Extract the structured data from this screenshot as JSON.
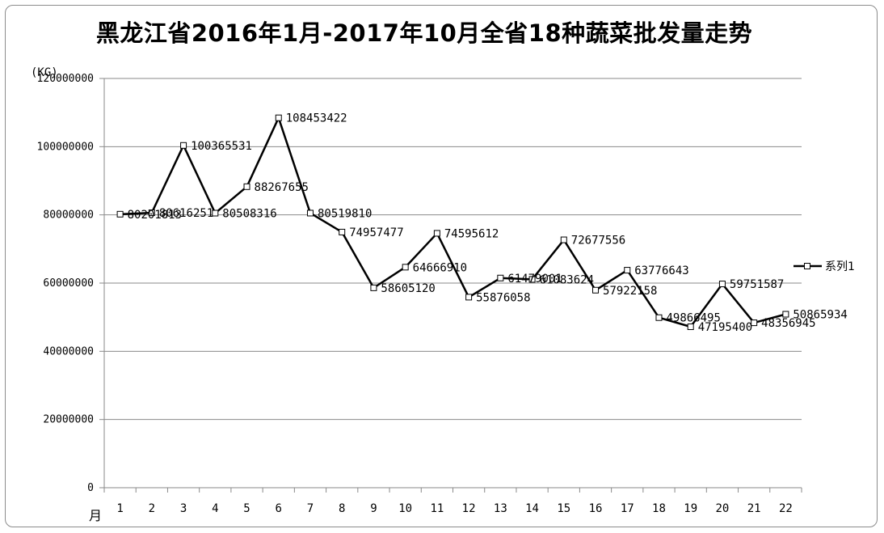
{
  "chart_data": {
    "type": "line",
    "title": "黑龙江省2016年1月-2017年10月全省18种蔬菜批发量走势",
    "ylabel": "(KG)",
    "xlabel": "月",
    "ylim": [
      0,
      120000000
    ],
    "yticks": [
      0,
      20000000,
      40000000,
      60000000,
      80000000,
      100000000,
      120000000
    ],
    "ytick_labels": [
      "0",
      "20000000",
      "40000000",
      "60000000",
      "80000000",
      "100000000",
      "120000000"
    ],
    "categories": [
      "1",
      "2",
      "3",
      "4",
      "5",
      "6",
      "7",
      "8",
      "9",
      "10",
      "11",
      "12",
      "13",
      "14",
      "15",
      "16",
      "17",
      "18",
      "19",
      "20",
      "21",
      "22"
    ],
    "grid": true,
    "legend_position": "right",
    "series": [
      {
        "name": "系列1",
        "color": "#000000",
        "values": [
          80201813,
          80616251,
          100365531,
          80508316,
          88267655,
          108453422,
          80519810,
          74957477,
          58605120,
          64666910,
          74595612,
          55876058,
          61479001,
          61083624,
          72677556,
          57922158,
          63776643,
          49866495,
          47195400,
          59751587,
          48356945,
          50865934
        ],
        "labels": [
          "80201813",
          "80616251",
          "100365531",
          "80508316",
          "88267655",
          "108453422",
          "80519810",
          "74957477",
          "58605120",
          "64666910",
          "74595612",
          "55876058",
          "61479001",
          "61083624",
          "72677556",
          "57922158",
          "63776643",
          "49866495",
          "47195400",
          "59751587",
          "48356945",
          "50865934"
        ]
      }
    ]
  }
}
